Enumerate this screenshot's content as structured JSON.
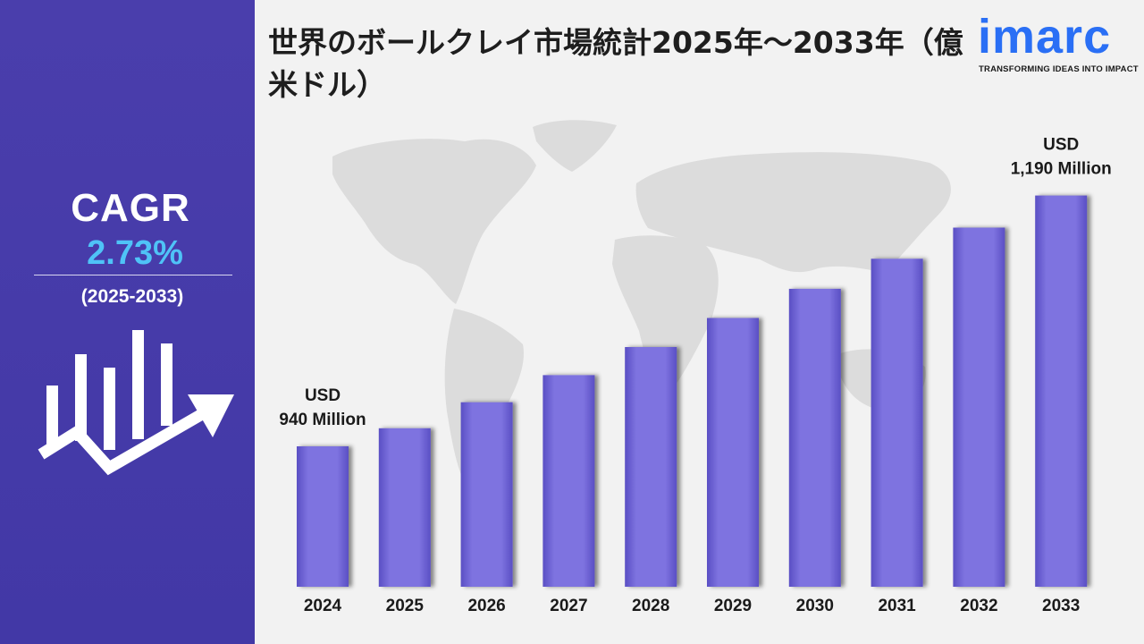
{
  "title": "世界のボールクレイ市場統計2025年～2033年（億米ドル）",
  "sidebar": {
    "cagr_label": "CAGR",
    "cagr_value": "2.73%",
    "period": "(2025-2033)",
    "icon": "growth-chart-arrow-icon"
  },
  "logo": {
    "word": "imarc",
    "tagline": "TRANSFORMING IDEAS INTO IMPACT"
  },
  "colors": {
    "sidebar": "#4a3eac",
    "cagr_value": "#4fc3f7",
    "bar": "#7b6fdc",
    "logo": "#2a6ff5"
  },
  "chart_data": {
    "type": "bar",
    "title": "世界のボールクレイ市場統計2025年～2033年（億米ドル）",
    "categories": [
      "2024",
      "2025",
      "2026",
      "2027",
      "2028",
      "2029",
      "2030",
      "2031",
      "2032",
      "2033"
    ],
    "values": [
      940,
      958,
      984,
      1011,
      1039,
      1068,
      1097,
      1127,
      1158,
      1190
    ],
    "ylim": [
      800,
      1220
    ],
    "grid": false,
    "legend": "none",
    "annotations": [
      {
        "category": "2024",
        "line1": "USD",
        "line2": "940 Million"
      },
      {
        "category": "2033",
        "line1": "USD",
        "line2": "1,190 Million"
      }
    ]
  }
}
